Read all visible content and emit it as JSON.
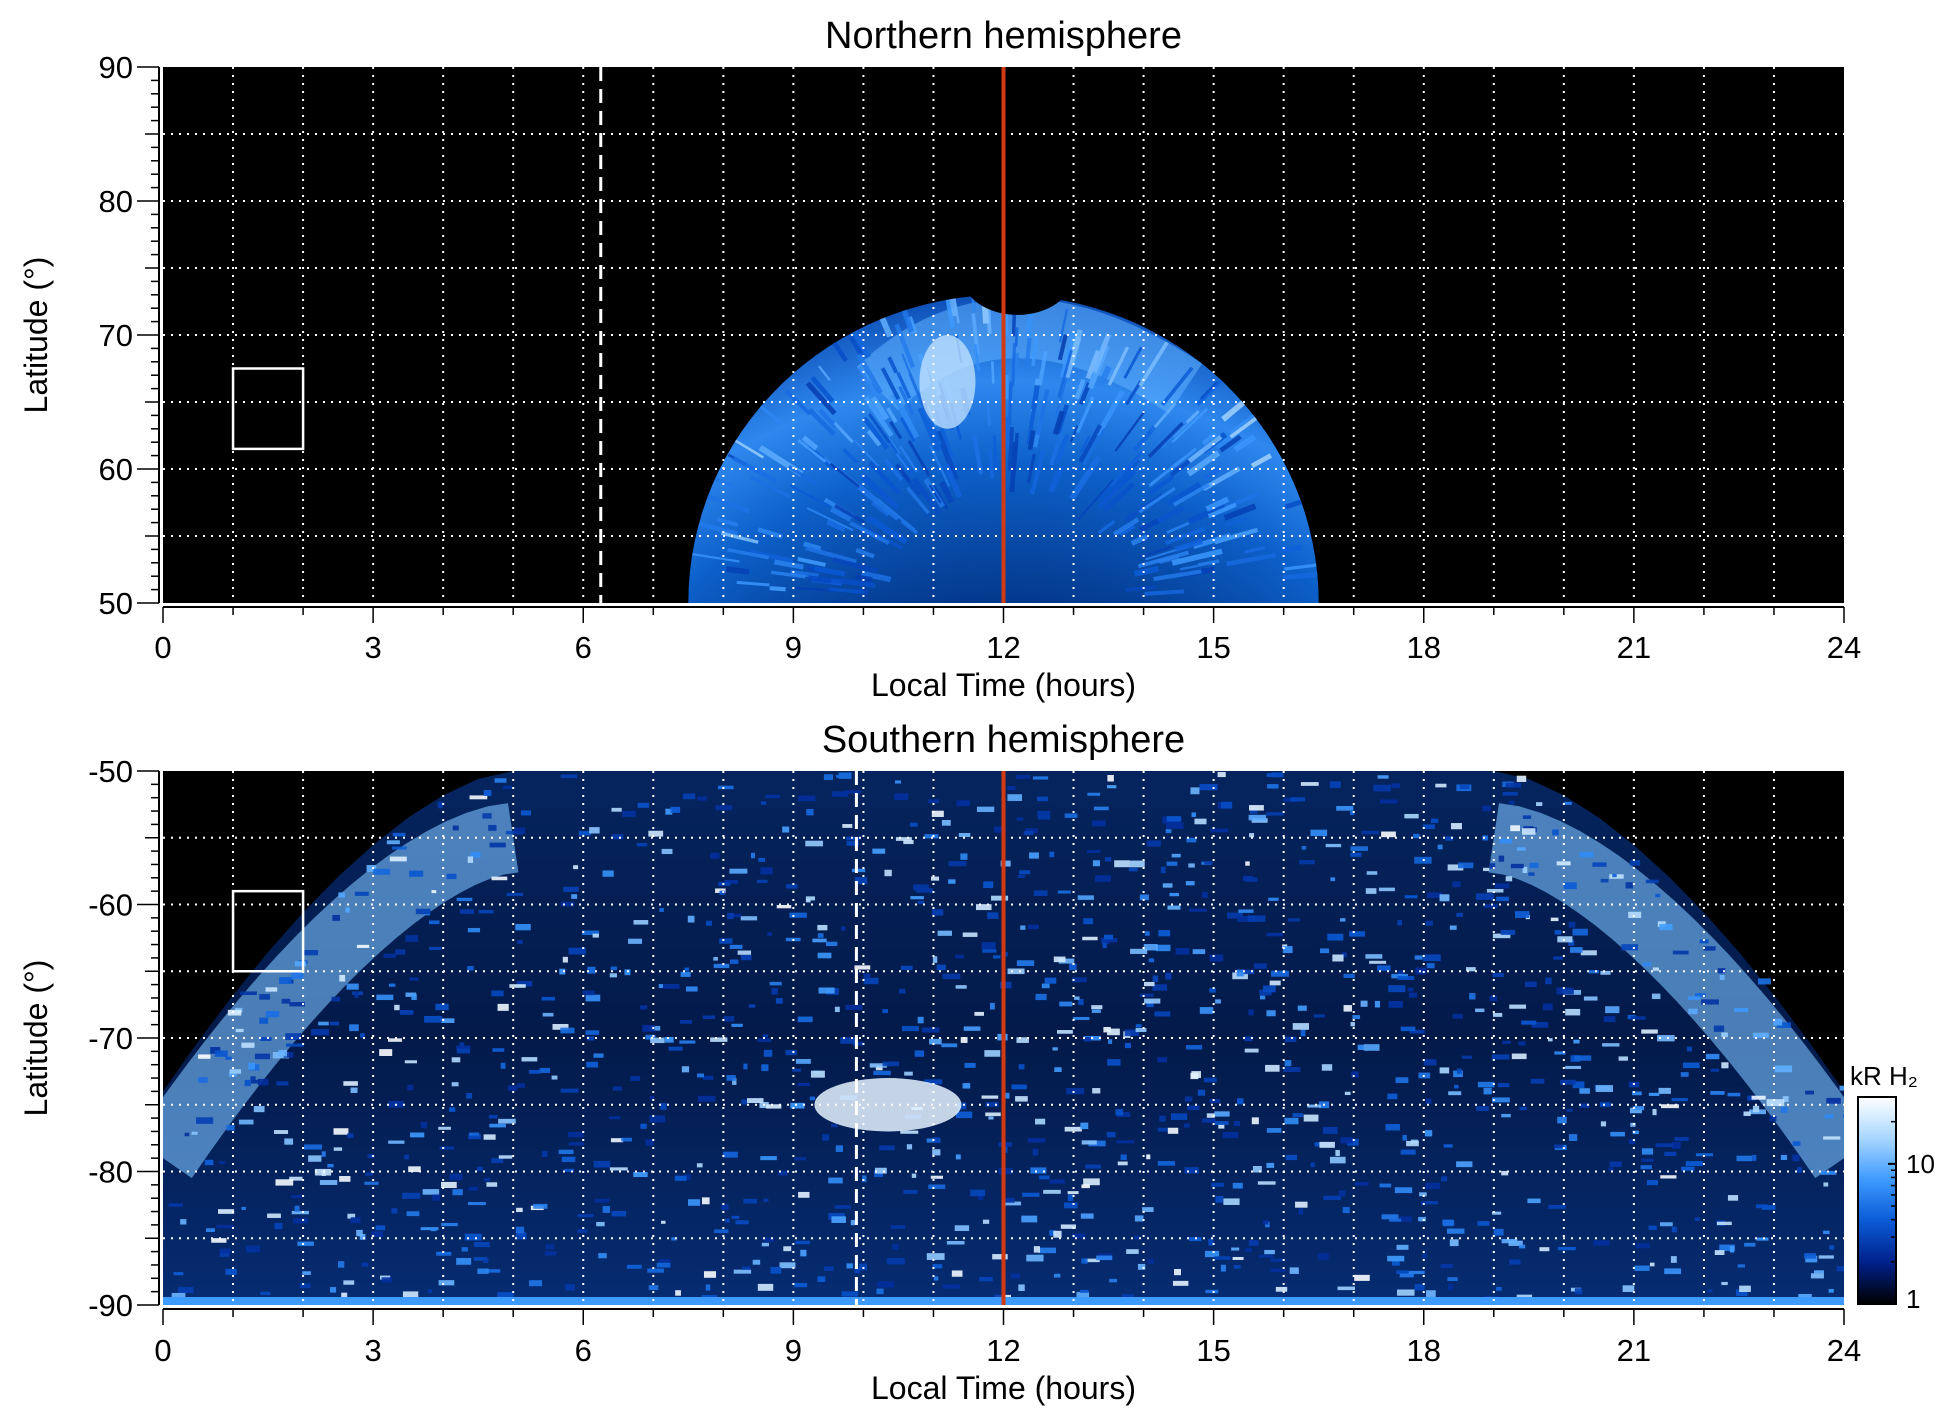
{
  "chart_data": [
    {
      "type": "heatmap",
      "title": "Northern hemisphere",
      "xlabel": "Local Time (hours)",
      "ylabel": "Latitude (°)",
      "xlim": [
        0,
        24
      ],
      "ylim": [
        50,
        90
      ],
      "x_ticks": [
        "0",
        "3",
        "6",
        "9",
        "12",
        "15",
        "18",
        "21",
        "24"
      ],
      "y_ticks": [
        "90",
        "80",
        "70",
        "60",
        "50"
      ],
      "grid": true,
      "reference_lines": [
        {
          "style": "dashed",
          "color": "#ffffff",
          "x": 6.25
        },
        {
          "style": "solid",
          "color": "#d23a12",
          "x": 12
        }
      ],
      "annotation_box": {
        "x": [
          1,
          2
        ],
        "y": [
          61.5,
          67.5
        ],
        "color": "#ffffff"
      },
      "emission_region": {
        "x_range": [
          7.7,
          16.5
        ],
        "lat_edge_at_noon": 73,
        "bright_oval_latitude": [
          62,
          72
        ],
        "bright_oval_local_time": [
          10.5,
          14.5
        ],
        "brightest_patch": {
          "x": [
            10.8,
            11.6
          ],
          "y": [
            63,
            70
          ]
        }
      },
      "colormap": "black-blue-white"
    },
    {
      "type": "heatmap",
      "title": "Southern hemisphere",
      "xlabel": "Local Time (hours)",
      "ylabel": "Latitude (°)",
      "xlim": [
        0,
        24
      ],
      "ylim": [
        -90,
        -50
      ],
      "x_ticks": [
        "0",
        "3",
        "6",
        "9",
        "12",
        "15",
        "18",
        "21",
        "24"
      ],
      "y_ticks": [
        "-50",
        "-60",
        "-70",
        "-80",
        "-90"
      ],
      "grid": true,
      "reference_lines": [
        {
          "style": "dashed",
          "color": "#ffffff",
          "x": 9.9
        },
        {
          "style": "solid",
          "color": "#d23a12",
          "x": 12
        }
      ],
      "annotation_box": {
        "x": [
          1,
          2
        ],
        "y": [
          -65,
          -59
        ],
        "color": "#ffffff"
      },
      "emission_region": {
        "lat_edge_at_midnight": -74,
        "lat_edge_at_noon": -50,
        "edge_reaches_top_at_local_time": [
          5,
          19
        ],
        "bright_oval_latitude": [
          -80,
          -55
        ],
        "brightest_patch": {
          "x": [
            9.3,
            11.4
          ],
          "y": [
            -77,
            -73
          ]
        }
      },
      "colormap": "black-blue-white"
    }
  ],
  "colorbar": {
    "label": "kR H₂",
    "ticks": [
      "1",
      "10"
    ],
    "tick_values": [
      1,
      10
    ],
    "range": [
      1,
      30
    ],
    "scale": "log",
    "colors": [
      "#000000",
      "#00208a",
      "#0a5ad6",
      "#3d9aff",
      "#a8d6ff",
      "#ffffff"
    ]
  }
}
